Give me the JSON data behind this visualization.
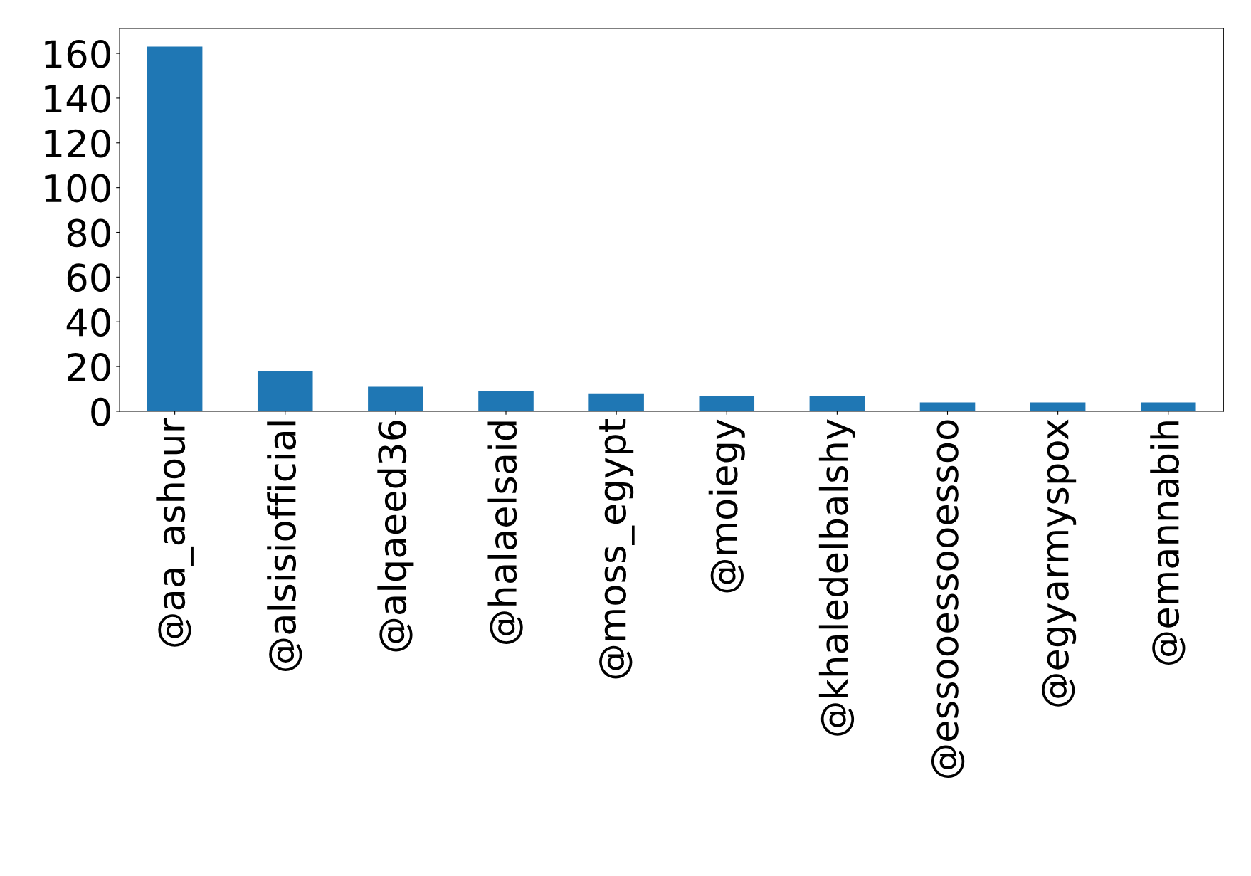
{
  "chart_data": {
    "type": "bar",
    "categories": [
      "@aa_ashour",
      "@alsisiofficial",
      "@alqaeed36",
      "@halaelsaid",
      "@moss_egypt",
      "@moiegy",
      "@khaledelbalshy",
      "@essooessooessoo",
      "@egyarmyspox",
      "@emannabih"
    ],
    "values": [
      163,
      18,
      11,
      9,
      8,
      7,
      7,
      4,
      4,
      4
    ],
    "color": "#1f77b4",
    "ylim": [
      0,
      171.15
    ],
    "yticks": [
      0,
      20,
      40,
      60,
      80,
      100,
      120,
      140,
      160
    ],
    "grid": false,
    "legend": false
  }
}
